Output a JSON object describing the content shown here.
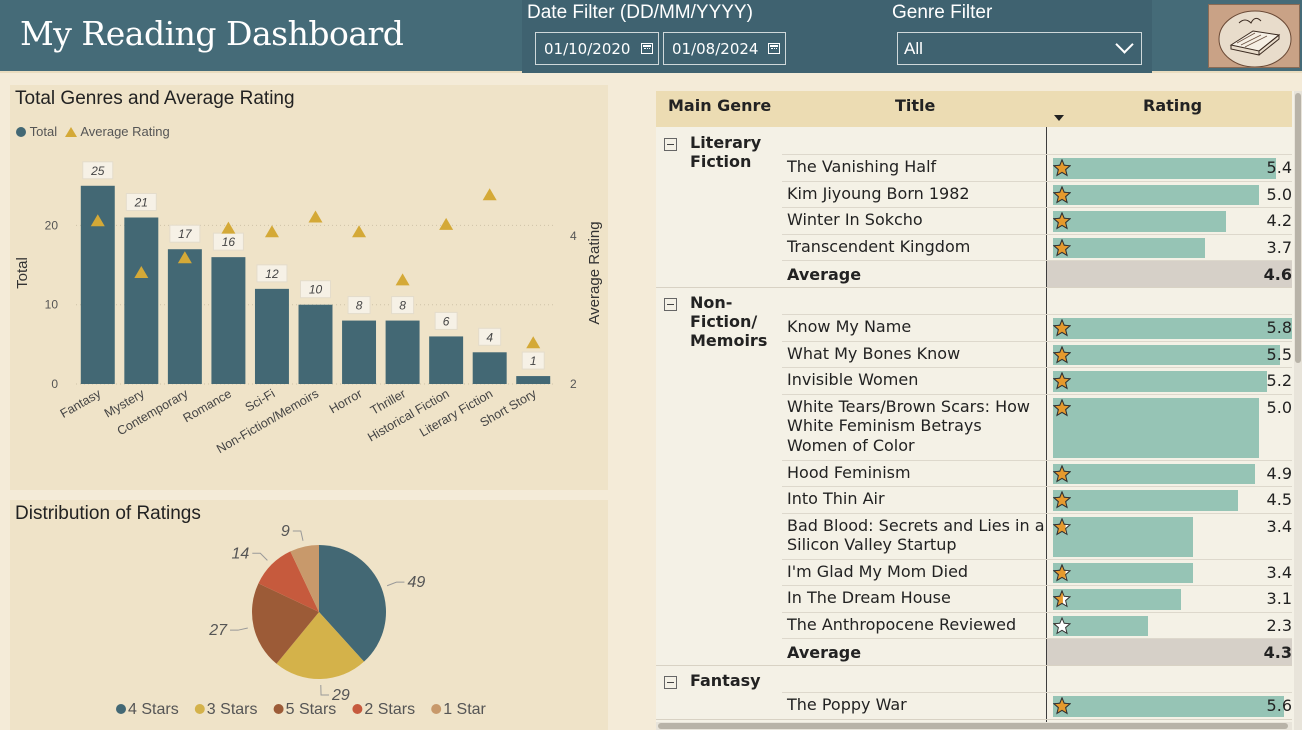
{
  "header": {
    "title": "My Reading Dashboard",
    "date_filter": {
      "label": "Date Filter (DD/MM/YYYY)",
      "start": "01/10/2020",
      "end": "01/08/2024"
    },
    "genre_filter": {
      "label": "Genre Filter",
      "value": "All"
    }
  },
  "genres_chart": {
    "title": "Total Genres and Average Rating",
    "legend": [
      {
        "label": "Total",
        "color": "#436874",
        "marker": "circle"
      },
      {
        "label": "Average Rating",
        "color": "#d4a937",
        "marker": "triangle"
      }
    ]
  },
  "ratings_chart": {
    "title": "Distribution of Ratings",
    "legend": [
      {
        "label": "4 Stars",
        "color": "#436874"
      },
      {
        "label": "3 Stars",
        "color": "#d4b24a"
      },
      {
        "label": "5 Stars",
        "color": "#9c5b37"
      },
      {
        "label": "2 Stars",
        "color": "#c65a3d"
      },
      {
        "label": "1 Star",
        "color": "#c8996b"
      }
    ]
  },
  "chart_data": [
    {
      "type": "bar",
      "title": "Total Genres and Average Rating",
      "categories": [
        "Fantasy",
        "Mystery",
        "Contemporary",
        "Romance",
        "Sci-Fi",
        "Non-Fiction/Memoirs",
        "Horror",
        "Thriller",
        "Historical Fiction",
        "Literary Fiction",
        "Short Story"
      ],
      "series": [
        {
          "name": "Total",
          "type": "bar",
          "axis": "left",
          "values": [
            25,
            21,
            17,
            16,
            12,
            10,
            8,
            8,
            6,
            4,
            1
          ]
        },
        {
          "name": "Average Rating",
          "type": "scatter",
          "axis": "right",
          "values": [
            4.2,
            3.5,
            3.7,
            4.1,
            4.05,
            4.25,
            4.05,
            3.4,
            4.15,
            4.55,
            2.55
          ]
        }
      ],
      "ylabel": "Total",
      "y2label": "Average Rating",
      "ylim": [
        0,
        28
      ],
      "y2lim": [
        2,
        5
      ],
      "yticks": [
        "0",
        "10",
        "20"
      ],
      "y2ticks": [
        "2",
        "4"
      ],
      "grid": true,
      "legend": "top-left"
    },
    {
      "type": "pie",
      "title": "Distribution of Ratings",
      "categories": [
        "4 Stars",
        "3 Stars",
        "5 Stars",
        "2 Stars",
        "1 Star"
      ],
      "values": [
        49,
        29,
        27,
        14,
        9
      ],
      "colors": [
        "#436874",
        "#d4b24a",
        "#9c5b37",
        "#c65a3d",
        "#c8996b"
      ],
      "legend": "bottom"
    }
  ],
  "table": {
    "headers": {
      "genre": "Main Genre",
      "title": "Title",
      "rating": "Rating"
    },
    "groups": [
      {
        "genre": "Literary Fiction",
        "genre_lines": [
          "Literary",
          "Fiction"
        ],
        "books": [
          {
            "title": "The Vanishing Half",
            "rating": "5.4",
            "rating_num": 5.4
          },
          {
            "title": "Kim Jiyoung Born 1982",
            "rating": "5.0",
            "rating_num": 5.0
          },
          {
            "title": "Winter In Sokcho",
            "rating": "4.2",
            "rating_num": 4.2
          },
          {
            "title": "Transcendent Kingdom",
            "rating": "3.7",
            "rating_num": 3.7
          }
        ],
        "average_label": "Average",
        "average": "4.6"
      },
      {
        "genre": "Non-Fiction/Memoirs",
        "genre_lines": [
          "Non-",
          "Fiction/",
          "Memoirs"
        ],
        "books": [
          {
            "title": "Know My Name",
            "rating": "5.8",
            "rating_num": 5.8
          },
          {
            "title": "What My Bones Know",
            "rating": "5.5",
            "rating_num": 5.5
          },
          {
            "title": "Invisible Women",
            "rating": "5.2",
            "rating_num": 5.2
          },
          {
            "title": "White Tears/Brown Scars: How White Feminism Betrays Women of Color",
            "rating": "5.0",
            "rating_num": 5.0
          },
          {
            "title": "Hood Feminism",
            "rating": "4.9",
            "rating_num": 4.9
          },
          {
            "title": "Into Thin Air",
            "rating": "4.5",
            "rating_num": 4.5
          },
          {
            "title": "Bad Blood: Secrets and Lies in a Silicon Valley Startup",
            "rating": "3.4",
            "rating_num": 3.4
          },
          {
            "title": "I'm Glad My Mom Died",
            "rating": "3.4",
            "rating_num": 3.4
          },
          {
            "title": "In The Dream House",
            "rating": "3.1",
            "rating_num": 3.1
          },
          {
            "title": "The Anthropocene Reviewed",
            "rating": "2.3",
            "rating_num": 2.3
          }
        ],
        "average_label": "Average",
        "average": "4.3"
      },
      {
        "genre": "Fantasy",
        "genre_lines": [
          "Fantasy"
        ],
        "books": [
          {
            "title": "The Poppy War",
            "rating": "5.6",
            "rating_num": 5.6
          }
        ]
      }
    ]
  }
}
